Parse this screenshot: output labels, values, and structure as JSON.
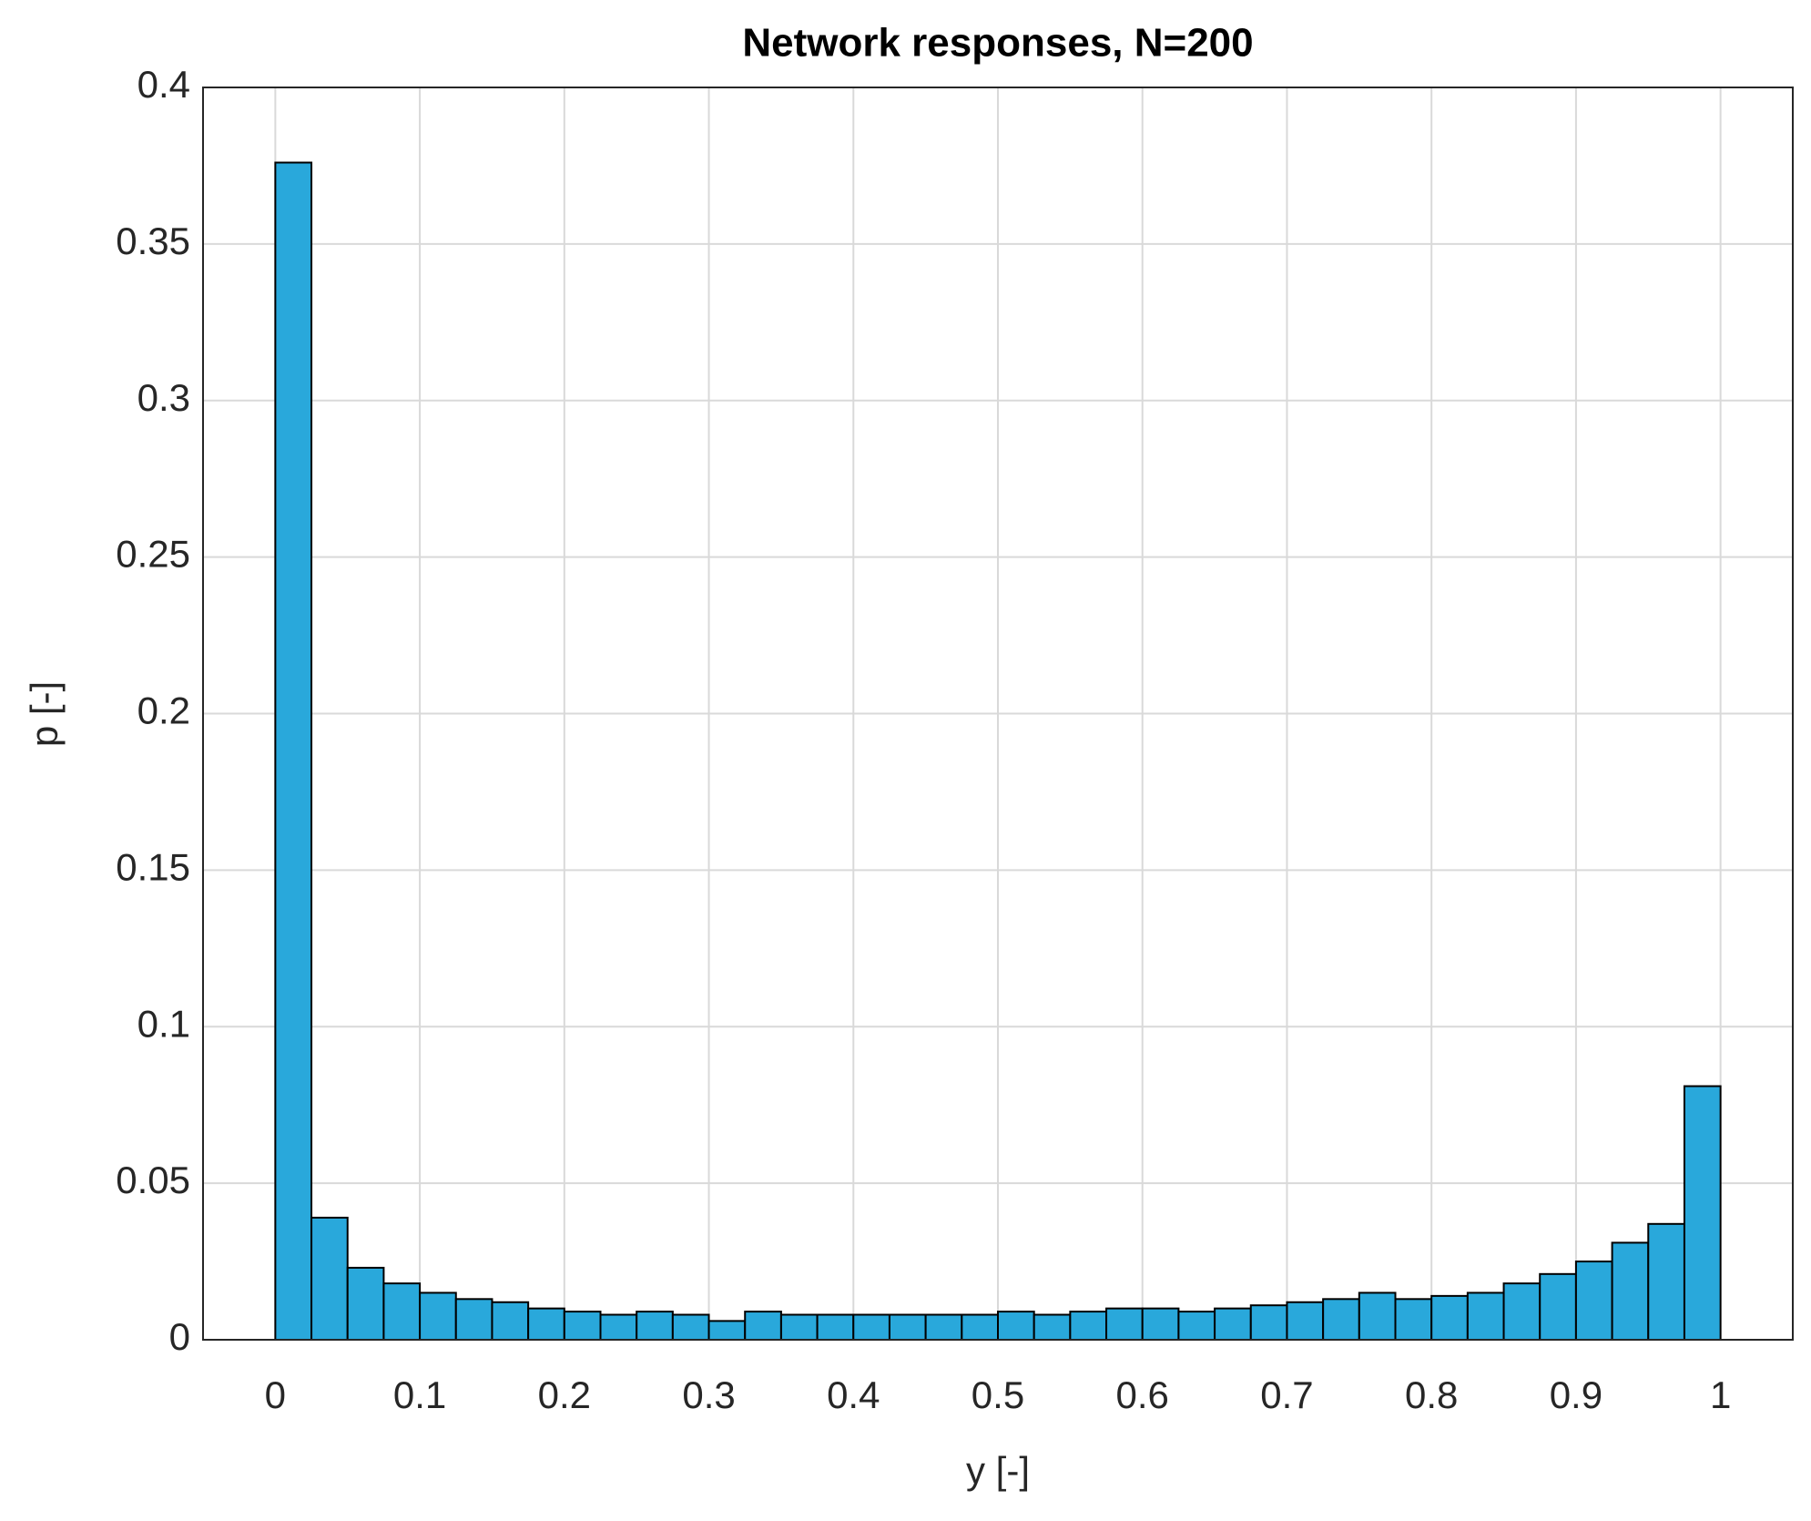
{
  "chart_data": {
    "type": "histogram",
    "title": "Network responses, N=200",
    "xlabel": "y [-]",
    "ylabel": "p [-]",
    "bins": [
      0,
      0.025,
      0.05,
      0.075,
      0.1,
      0.125,
      0.15,
      0.175,
      0.2,
      0.225,
      0.25,
      0.275,
      0.3,
      0.325,
      0.35,
      0.375,
      0.4,
      0.425,
      0.45,
      0.475,
      0.5,
      0.525,
      0.55,
      0.575,
      0.6,
      0.625,
      0.65,
      0.675,
      0.7,
      0.725,
      0.75,
      0.775,
      0.8,
      0.825,
      0.85,
      0.875,
      0.9,
      0.925,
      0.95,
      0.975,
      1
    ],
    "values": [
      0.376,
      0.039,
      0.023,
      0.018,
      0.015,
      0.013,
      0.012,
      0.01,
      0.009,
      0.008,
      0.009,
      0.008,
      0.006,
      0.009,
      0.008,
      0.008,
      0.008,
      0.008,
      0.008,
      0.008,
      0.009,
      0.008,
      0.009,
      0.01,
      0.01,
      0.009,
      0.01,
      0.011,
      0.012,
      0.013,
      0.015,
      0.013,
      0.014,
      0.015,
      0.018,
      0.021,
      0.025,
      0.031,
      0.037,
      0.081
    ],
    "color": "#29a8db",
    "xlim": [
      -0.05,
      1.05
    ],
    "ylim": [
      0,
      0.4
    ],
    "xticks": [
      0,
      0.1,
      0.2,
      0.3,
      0.4,
      0.5,
      0.6,
      0.7,
      0.8,
      0.9,
      1
    ],
    "yticks": [
      0,
      0.05,
      0.1,
      0.15,
      0.2,
      0.25,
      0.3,
      0.35,
      0.4
    ],
    "grid": true
  }
}
